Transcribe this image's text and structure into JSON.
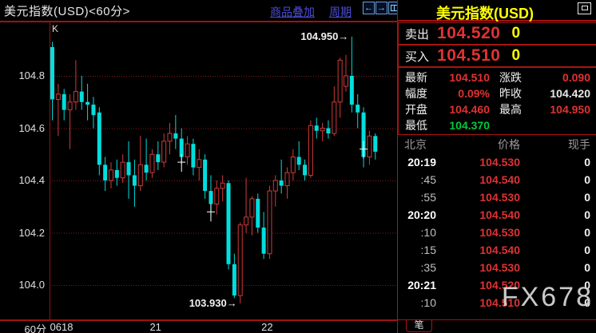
{
  "header": {
    "title": "美元指数(USD)<60分>",
    "overlay_link": "商品叠加",
    "period_link": "周期",
    "nav_icons": [
      {
        "name": "back-arrow-icon",
        "glyph": "←"
      },
      {
        "name": "forward-arrow-icon",
        "glyph": "→"
      },
      {
        "name": "split-window-icon",
        "glyph": ""
      }
    ]
  },
  "chart": {
    "indicator_label": "K",
    "timeframe_label": "60分"
  },
  "chart_data": {
    "type": "candlestick",
    "title": "美元指数(USD) 60分",
    "up_color": "#d03a3a",
    "down_color": "#00dede",
    "grid_color": "#7e1d1d",
    "y_ticks": [
      104.8,
      104.6,
      104.4,
      104.2,
      104.0
    ],
    "x_tick_labels": [
      {
        "label": "0618",
        "candle": 0
      },
      {
        "label": "21",
        "candle": 17
      },
      {
        "label": "22",
        "candle": 36
      }
    ],
    "high_marker": {
      "price": 104.95,
      "candle": 51,
      "label": "104.950→"
    },
    "low_marker": {
      "price": 103.93,
      "candle": 32,
      "label": "103.930→"
    },
    "cursor_markers": [
      {
        "candle": 22,
        "price": 104.47
      },
      {
        "candle": 27,
        "price": 104.28
      },
      {
        "candle": 53,
        "price": 104.52
      }
    ],
    "ohlc_order": [
      "open",
      "high",
      "low",
      "close"
    ],
    "ohlc": [
      [
        104.91,
        104.93,
        104.63,
        104.71
      ],
      [
        104.71,
        104.77,
        104.57,
        104.73
      ],
      [
        104.73,
        104.75,
        104.63,
        104.67
      ],
      [
        104.67,
        104.73,
        104.52,
        104.7
      ],
      [
        104.7,
        104.86,
        104.67,
        104.74
      ],
      [
        104.74,
        104.8,
        104.67,
        104.7
      ],
      [
        104.7,
        104.77,
        104.63,
        104.69
      ],
      [
        104.69,
        104.72,
        104.6,
        104.65
      ],
      [
        104.66,
        104.68,
        104.42,
        104.46
      ],
      [
        104.46,
        104.49,
        104.36,
        104.4
      ],
      [
        104.4,
        104.47,
        104.37,
        104.44
      ],
      [
        104.44,
        104.48,
        104.38,
        104.41
      ],
      [
        104.41,
        104.5,
        104.39,
        104.47
      ],
      [
        104.47,
        104.55,
        104.33,
        104.42
      ],
      [
        104.42,
        104.48,
        104.3,
        104.38
      ],
      [
        104.38,
        104.57,
        104.36,
        104.46
      ],
      [
        104.46,
        104.56,
        104.4,
        104.43
      ],
      [
        104.43,
        104.52,
        104.41,
        104.5
      ],
      [
        104.5,
        104.55,
        104.44,
        104.47
      ],
      [
        104.47,
        104.58,
        104.45,
        104.55
      ],
      [
        104.55,
        104.62,
        104.5,
        104.58
      ],
      [
        104.58,
        104.65,
        104.52,
        104.56
      ],
      [
        104.56,
        104.6,
        104.46,
        104.49
      ],
      [
        104.49,
        104.57,
        104.46,
        104.54
      ],
      [
        104.54,
        104.56,
        104.42,
        104.45
      ],
      [
        104.45,
        104.52,
        104.4,
        104.48
      ],
      [
        104.48,
        104.5,
        104.33,
        104.36
      ],
      [
        104.36,
        104.42,
        104.26,
        104.31
      ],
      [
        104.31,
        104.4,
        104.27,
        104.37
      ],
      [
        104.37,
        104.42,
        104.32,
        104.39
      ],
      [
        104.39,
        104.4,
        104.06,
        104.08
      ],
      [
        104.08,
        104.12,
        103.95,
        103.96
      ],
      [
        103.96,
        104.24,
        103.93,
        104.23
      ],
      [
        104.23,
        104.41,
        104.2,
        104.26
      ],
      [
        104.26,
        104.34,
        104.19,
        104.33
      ],
      [
        104.33,
        104.35,
        104.2,
        104.22
      ],
      [
        104.22,
        104.28,
        104.1,
        104.12
      ],
      [
        104.12,
        104.38,
        104.1,
        104.36
      ],
      [
        104.36,
        104.42,
        104.3,
        104.4
      ],
      [
        104.4,
        104.48,
        104.35,
        104.38
      ],
      [
        104.38,
        104.45,
        104.33,
        104.43
      ],
      [
        104.43,
        104.52,
        104.4,
        104.49
      ],
      [
        104.49,
        104.55,
        104.44,
        104.46
      ],
      [
        104.46,
        104.48,
        104.4,
        104.42
      ],
      [
        104.42,
        104.63,
        104.41,
        104.61
      ],
      [
        104.61,
        104.64,
        104.56,
        104.59
      ],
      [
        104.59,
        104.62,
        104.55,
        104.6
      ],
      [
        104.6,
        104.63,
        104.56,
        104.58
      ],
      [
        104.58,
        104.76,
        104.57,
        104.7
      ],
      [
        104.7,
        104.87,
        104.64,
        104.86
      ],
      [
        104.76,
        104.88,
        104.74,
        104.8
      ],
      [
        104.8,
        104.95,
        104.66,
        104.69
      ],
      [
        104.69,
        104.73,
        104.6,
        104.66
      ],
      [
        104.66,
        104.68,
        104.45,
        104.49
      ],
      [
        104.49,
        104.59,
        104.46,
        104.57
      ],
      [
        104.57,
        104.58,
        104.48,
        104.51
      ]
    ]
  },
  "panel": {
    "title": "美元指数(USD)",
    "sell": {
      "label": "卖出",
      "price": "104.520",
      "volume": "0"
    },
    "buy": {
      "label": "买入",
      "price": "104.510",
      "volume": "0"
    },
    "stats": [
      {
        "label": "最新",
        "value": "104.510",
        "color": "red"
      },
      {
        "label": "涨跌",
        "value": "0.090",
        "color": "red"
      },
      {
        "label": "幅度",
        "value": "0.09%",
        "color": "red"
      },
      {
        "label": "昨收",
        "value": "104.420",
        "color": "white"
      },
      {
        "label": "开盘",
        "value": "104.460",
        "color": "red"
      },
      {
        "label": "最高",
        "value": "104.950",
        "color": "red"
      },
      {
        "label": "最低",
        "value": "104.370",
        "color": "green"
      }
    ],
    "list_headers": [
      "北京",
      "价格",
      "现手"
    ],
    "ticks": [
      {
        "time": "20:19",
        "price": "104.530",
        "volume": "0"
      },
      {
        "time": ":45",
        "price": "104.540",
        "volume": "0"
      },
      {
        "time": ":55",
        "price": "104.530",
        "volume": "0"
      },
      {
        "time": "20:20",
        "price": "104.540",
        "volume": "0"
      },
      {
        "time": ":10",
        "price": "104.530",
        "volume": "0"
      },
      {
        "time": ":15",
        "price": "104.540",
        "volume": "0"
      },
      {
        "time": ":35",
        "price": "104.530",
        "volume": "0"
      },
      {
        "time": "20:21",
        "price": "104.520",
        "volume": "0"
      },
      {
        "time": ":10",
        "price": "104.510",
        "volume": "0"
      }
    ],
    "tab_label": "笔",
    "watermark": "FX678"
  },
  "colors": {
    "accent_red": "#a01212",
    "candle_up": "#d03a3a",
    "candle_down": "#00dede",
    "price_red": "#e03232",
    "value_green": "#00c93c",
    "highlight_yellow": "#ffff00",
    "link_blue": "#4b4bd8"
  }
}
